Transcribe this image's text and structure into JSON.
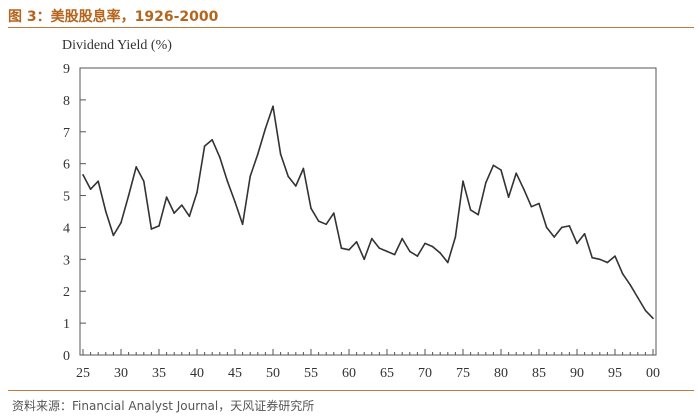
{
  "title": "图 3：美股股息率，1926-2000",
  "source": "资料来源：Financial Analyst Journal，天风证券研究所",
  "colors": {
    "accent": "#c07a3a",
    "title": "#b5651d",
    "line": "#333333"
  },
  "chart_data": {
    "type": "line",
    "title": "",
    "ylabel": "Dividend Yield (%)",
    "xlabel": "",
    "ylim": [
      0,
      9
    ],
    "xlim": [
      1925,
      2000
    ],
    "yticks": [
      0,
      1,
      2,
      3,
      4,
      5,
      6,
      7,
      8,
      9
    ],
    "xticks": [
      {
        "value": 1925,
        "label": "25"
      },
      {
        "value": 1930,
        "label": "30"
      },
      {
        "value": 1935,
        "label": "35"
      },
      {
        "value": 1940,
        "label": "40"
      },
      {
        "value": 1945,
        "label": "45"
      },
      {
        "value": 1950,
        "label": "50"
      },
      {
        "value": 1955,
        "label": "55"
      },
      {
        "value": 1960,
        "label": "60"
      },
      {
        "value": 1965,
        "label": "65"
      },
      {
        "value": 1970,
        "label": "70"
      },
      {
        "value": 1975,
        "label": "75"
      },
      {
        "value": 1980,
        "label": "80"
      },
      {
        "value": 1985,
        "label": "85"
      },
      {
        "value": 1990,
        "label": "90"
      },
      {
        "value": 1995,
        "label": "95"
      },
      {
        "value": 2000,
        "label": "00"
      }
    ],
    "series": [
      {
        "name": "Dividend Yield",
        "x": [
          1925,
          1926,
          1927,
          1928,
          1929,
          1930,
          1931,
          1932,
          1933,
          1934,
          1935,
          1936,
          1937,
          1938,
          1939,
          1940,
          1941,
          1942,
          1943,
          1944,
          1945,
          1946,
          1947,
          1948,
          1949,
          1950,
          1951,
          1952,
          1953,
          1954,
          1955,
          1956,
          1957,
          1958,
          1959,
          1960,
          1961,
          1962,
          1963,
          1964,
          1965,
          1966,
          1967,
          1968,
          1969,
          1970,
          1971,
          1972,
          1973,
          1974,
          1975,
          1976,
          1977,
          1978,
          1979,
          1980,
          1981,
          1982,
          1983,
          1984,
          1985,
          1986,
          1987,
          1988,
          1989,
          1990,
          1991,
          1992,
          1993,
          1994,
          1995,
          1996,
          1997,
          1998,
          1999,
          2000
        ],
        "values": [
          5.65,
          5.2,
          5.45,
          4.5,
          3.75,
          4.15,
          5.0,
          5.9,
          5.45,
          3.95,
          4.05,
          4.95,
          4.45,
          4.7,
          4.35,
          5.1,
          6.55,
          6.75,
          6.2,
          5.45,
          4.8,
          4.1,
          5.6,
          6.3,
          7.1,
          7.8,
          6.3,
          5.6,
          5.3,
          5.85,
          4.6,
          4.2,
          4.1,
          4.45,
          3.35,
          3.3,
          3.55,
          3.0,
          3.65,
          3.35,
          3.25,
          3.15,
          3.65,
          3.25,
          3.1,
          3.5,
          3.4,
          3.2,
          2.9,
          3.7,
          5.45,
          4.55,
          4.4,
          5.4,
          5.95,
          5.8,
          4.95,
          5.7,
          5.2,
          4.65,
          4.75,
          4.0,
          3.7,
          4.0,
          4.05,
          3.5,
          3.8,
          3.05,
          3.0,
          2.9,
          3.1,
          2.55,
          2.2,
          1.8,
          1.4,
          1.15
        ]
      }
    ]
  }
}
